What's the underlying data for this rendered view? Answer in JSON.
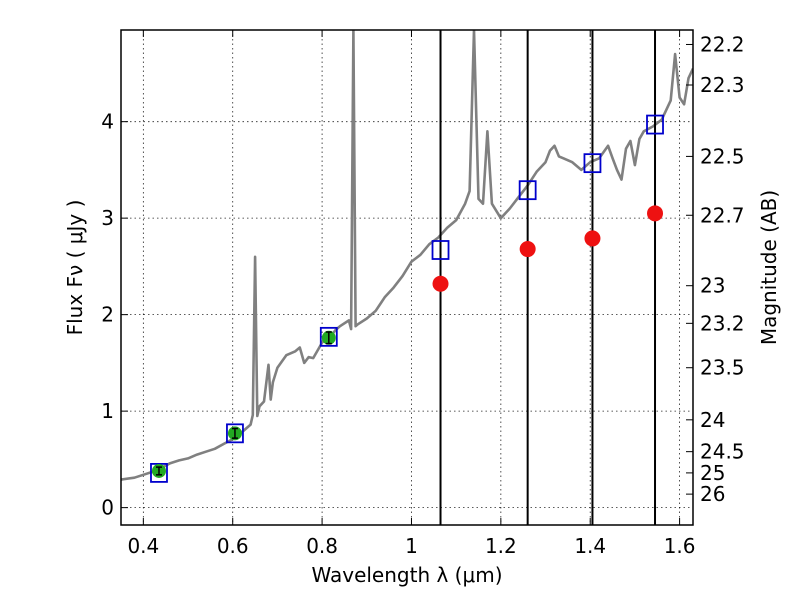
{
  "chart_data": {
    "type": "scatter",
    "title": "",
    "xlabel": "Wavelength  λ (μm)",
    "ylabel": "Flux  Fν  ( μJy )",
    "ylabel_right": "Magnitude (AB)",
    "xlim": [
      0.35,
      1.63
    ],
    "ylim": [
      -0.18,
      4.95
    ],
    "grid": true,
    "legend": "none",
    "x_ticks": [
      0.4,
      0.6,
      0.8,
      1.0,
      1.2,
      1.4,
      1.6
    ],
    "x_tick_labels": [
      "0.4",
      "0.6",
      "0.8",
      "1",
      "1.2",
      "1.4",
      "1.6"
    ],
    "y_ticks": [
      0,
      1,
      2,
      3,
      4
    ],
    "y_tick_labels": [
      "0",
      "1",
      "2",
      "3",
      "4"
    ],
    "right_ticks": [
      {
        "label": "22.2",
        "flux": 4.8
      },
      {
        "label": "22.3",
        "flux": 4.38
      },
      {
        "label": "22.5",
        "flux": 3.64
      },
      {
        "label": "22.7",
        "flux": 3.03
      },
      {
        "label": "23",
        "flux": 2.3
      },
      {
        "label": "23.2",
        "flux": 1.91
      },
      {
        "label": "23.5",
        "flux": 1.45
      },
      {
        "label": "24",
        "flux": 0.91
      },
      {
        "label": "24.5",
        "flux": 0.58
      },
      {
        "label": "25",
        "flux": 0.36
      },
      {
        "label": "26",
        "flux": 0.14
      }
    ],
    "vertical_lines_x": [
      1.065,
      1.26,
      1.405,
      1.545
    ],
    "colors": {
      "spectrum": "#808080",
      "template_box": "#0000cc",
      "observed_point": "#22aa22",
      "predicted_point": "#ee1111",
      "vertical_line": "#000000"
    },
    "series": [
      {
        "kind": "spectrum",
        "points": [
          [
            0.35,
            0.29
          ],
          [
            0.38,
            0.31
          ],
          [
            0.4,
            0.34
          ],
          [
            0.42,
            0.37
          ],
          [
            0.44,
            0.41
          ],
          [
            0.46,
            0.46
          ],
          [
            0.48,
            0.49
          ],
          [
            0.5,
            0.51
          ],
          [
            0.52,
            0.55
          ],
          [
            0.54,
            0.58
          ],
          [
            0.56,
            0.61
          ],
          [
            0.58,
            0.66
          ],
          [
            0.6,
            0.71
          ],
          [
            0.62,
            0.78
          ],
          [
            0.63,
            0.82
          ],
          [
            0.64,
            0.86
          ],
          [
            0.645,
            0.96
          ],
          [
            0.65,
            2.6
          ],
          [
            0.655,
            0.95
          ],
          [
            0.66,
            1.05
          ],
          [
            0.67,
            1.1
          ],
          [
            0.68,
            1.48
          ],
          [
            0.685,
            1.12
          ],
          [
            0.69,
            1.3
          ],
          [
            0.7,
            1.45
          ],
          [
            0.72,
            1.58
          ],
          [
            0.74,
            1.62
          ],
          [
            0.75,
            1.66
          ],
          [
            0.76,
            1.5
          ],
          [
            0.77,
            1.56
          ],
          [
            0.78,
            1.55
          ],
          [
            0.8,
            1.71
          ],
          [
            0.82,
            1.78
          ],
          [
            0.83,
            1.84
          ],
          [
            0.84,
            1.88
          ],
          [
            0.86,
            1.94
          ],
          [
            0.865,
            1.85
          ],
          [
            0.87,
            4.95
          ],
          [
            0.875,
            1.88
          ],
          [
            0.88,
            1.9
          ],
          [
            0.9,
            1.96
          ],
          [
            0.92,
            2.04
          ],
          [
            0.94,
            2.18
          ],
          [
            0.96,
            2.28
          ],
          [
            0.98,
            2.4
          ],
          [
            1.0,
            2.55
          ],
          [
            1.02,
            2.62
          ],
          [
            1.04,
            2.73
          ],
          [
            1.06,
            2.8
          ],
          [
            1.08,
            2.9
          ],
          [
            1.1,
            2.98
          ],
          [
            1.12,
            3.15
          ],
          [
            1.13,
            3.28
          ],
          [
            1.14,
            4.95
          ],
          [
            1.15,
            3.2
          ],
          [
            1.16,
            3.15
          ],
          [
            1.17,
            3.9
          ],
          [
            1.18,
            3.15
          ],
          [
            1.2,
            3.0
          ],
          [
            1.22,
            3.1
          ],
          [
            1.24,
            3.22
          ],
          [
            1.26,
            3.34
          ],
          [
            1.28,
            3.48
          ],
          [
            1.3,
            3.58
          ],
          [
            1.31,
            3.7
          ],
          [
            1.32,
            3.75
          ],
          [
            1.33,
            3.64
          ],
          [
            1.34,
            3.62
          ],
          [
            1.36,
            3.58
          ],
          [
            1.38,
            3.5
          ],
          [
            1.4,
            3.58
          ],
          [
            1.42,
            3.62
          ],
          [
            1.44,
            3.75
          ],
          [
            1.45,
            3.62
          ],
          [
            1.46,
            3.5
          ],
          [
            1.47,
            3.4
          ],
          [
            1.48,
            3.72
          ],
          [
            1.49,
            3.8
          ],
          [
            1.5,
            3.55
          ],
          [
            1.51,
            3.82
          ],
          [
            1.52,
            3.9
          ],
          [
            1.54,
            3.95
          ],
          [
            1.56,
            4.02
          ],
          [
            1.58,
            4.22
          ],
          [
            1.59,
            4.7
          ],
          [
            1.6,
            4.25
          ],
          [
            1.61,
            4.18
          ],
          [
            1.62,
            4.45
          ],
          [
            1.63,
            4.55
          ]
        ]
      },
      {
        "kind": "template-boxes",
        "x": [
          0.435,
          0.605,
          0.815,
          1.065,
          1.26,
          1.405,
          1.545
        ],
        "y": [
          0.36,
          0.77,
          1.77,
          2.67,
          3.29,
          3.57,
          3.97
        ]
      },
      {
        "kind": "observed-points",
        "x": [
          0.435,
          0.605,
          0.815
        ],
        "y": [
          0.38,
          0.77,
          1.76
        ],
        "err": [
          0.04,
          0.05,
          0.06
        ]
      },
      {
        "kind": "predicted-points",
        "x": [
          1.065,
          1.26,
          1.405,
          1.545
        ],
        "y": [
          2.32,
          2.68,
          2.79,
          3.05
        ]
      }
    ]
  }
}
